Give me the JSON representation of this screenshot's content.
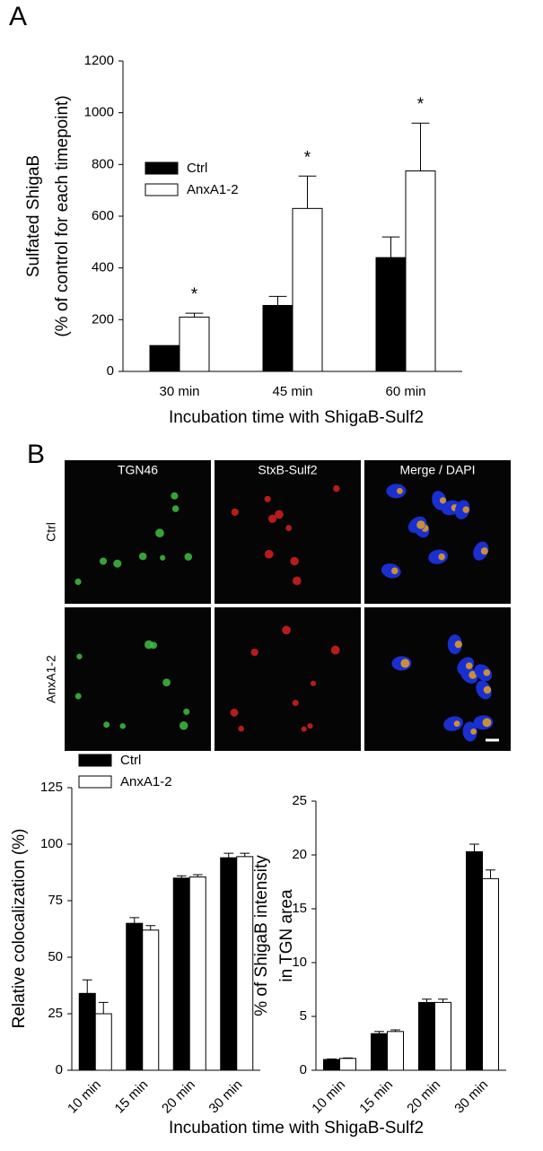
{
  "panel_labels": [
    "A",
    "B"
  ],
  "images": {
    "columns": [
      "TGN46",
      "StxB-Sulf2",
      "Merge / DAPI"
    ],
    "rows": [
      "Ctrl",
      "AnxA1-2"
    ]
  },
  "chart_data": [
    {
      "type": "bar",
      "categories": [
        "30 min",
        "45 min",
        "60 min"
      ],
      "series": [
        {
          "name": "Ctrl",
          "color": "#000000",
          "values": [
            100,
            255,
            440
          ],
          "errors": [
            0,
            35,
            80
          ]
        },
        {
          "name": "AnxA1-2",
          "color": "#ffffff",
          "values": [
            210,
            630,
            775
          ],
          "errors": [
            15,
            125,
            185
          ]
        }
      ],
      "annotations": [
        "*",
        "*",
        "*"
      ],
      "ylim": [
        0,
        1200
      ],
      "yticks": [
        0,
        200,
        400,
        600,
        800,
        1000,
        1200
      ],
      "ylabel": [
        "Sulfated ShigaB",
        "(% of control for each timepoint)"
      ],
      "xlabel": "Incubation time with ShigaB-Sulf2"
    },
    {
      "type": "bar",
      "categories": [
        "10 min",
        "15 min",
        "20 min",
        "30 min"
      ],
      "series": [
        {
          "name": "Ctrl",
          "color": "#000000",
          "values": [
            34,
            65,
            85,
            94
          ],
          "errors": [
            6,
            2.5,
            1,
            2
          ]
        },
        {
          "name": "AnxA1-2",
          "color": "#ffffff",
          "values": [
            25,
            62,
            85.5,
            94.5
          ],
          "errors": [
            5,
            2,
            1,
            1.5
          ]
        }
      ],
      "ylim": [
        0,
        125
      ],
      "yticks": [
        0,
        25,
        50,
        75,
        100,
        125
      ],
      "ylabel": [
        "Relative colocalization (%)"
      ],
      "xlabel": "Incubation time with ShigaB-Sulf2"
    },
    {
      "type": "bar",
      "categories": [
        "10 min",
        "15 min",
        "20 min",
        "30 min"
      ],
      "series": [
        {
          "color": "#000000",
          "values": [
            1.0,
            3.4,
            6.3,
            20.3
          ],
          "errors": [
            0.05,
            0.2,
            0.3,
            0.7
          ]
        },
        {
          "color": "#ffffff",
          "values": [
            1.1,
            3.6,
            6.3,
            17.8
          ],
          "errors": [
            0.05,
            0.15,
            0.3,
            0.8
          ]
        }
      ],
      "ylim": [
        0,
        25
      ],
      "yticks": [
        0,
        5,
        10,
        15,
        20,
        25
      ],
      "ylabel": [
        "% of ShigaB intensity",
        "in TGN area"
      ]
    }
  ]
}
